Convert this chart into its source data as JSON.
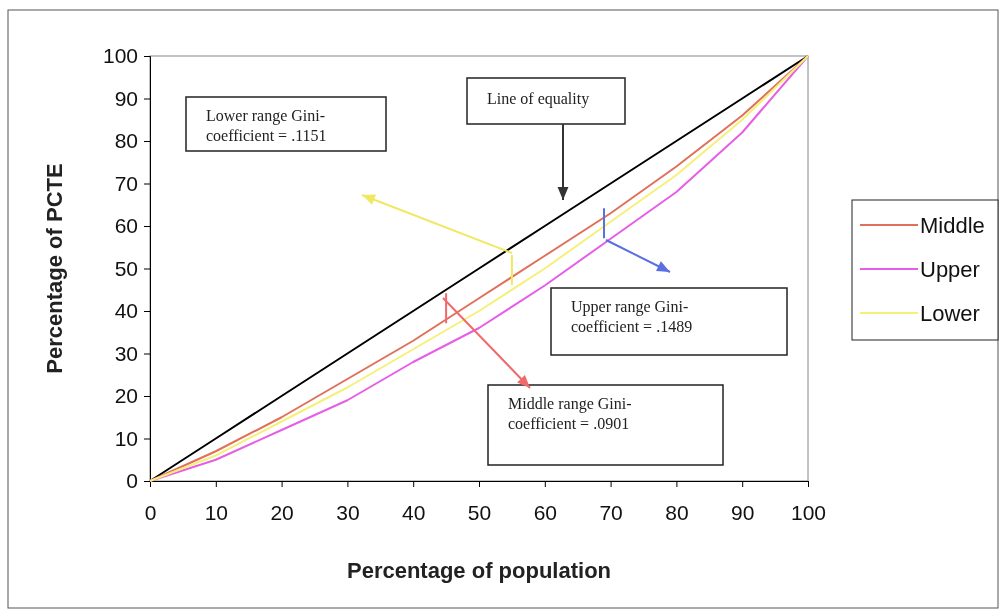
{
  "chart_data": {
    "type": "line",
    "xlabel": "Percentage of population",
    "ylabel": "Percentage of PCTE",
    "x": [
      0,
      10,
      20,
      30,
      40,
      50,
      60,
      70,
      80,
      90,
      100
    ],
    "xlim": [
      0,
      100
    ],
    "ylim": [
      0,
      100
    ],
    "xticks": [
      0,
      10,
      20,
      30,
      40,
      50,
      60,
      70,
      80,
      90,
      100
    ],
    "yticks": [
      0,
      10,
      20,
      30,
      40,
      50,
      60,
      70,
      80,
      90,
      100
    ],
    "series": [
      {
        "color": "#000000",
        "values": [
          0,
          10,
          20,
          30,
          40,
          50,
          60,
          70,
          80,
          90,
          100
        ]
      },
      {
        "name": "Middle",
        "color": "#e0705a",
        "values": [
          0,
          7,
          15,
          24,
          33,
          43,
          53,
          63,
          74,
          86,
          100
        ]
      },
      {
        "name": "Upper",
        "color": "#e65ee6",
        "values": [
          0,
          5,
          12,
          19,
          28,
          36,
          46,
          57,
          68,
          82,
          100
        ]
      },
      {
        "name": "Lower",
        "color": "#f5f07a",
        "values": [
          0,
          6,
          14,
          22,
          31,
          40,
          50,
          61,
          72,
          85,
          100
        ]
      }
    ],
    "legend": "right",
    "grid": false,
    "annotations": [
      "Line of equality",
      "Lower range Gini-coefficient = .1151",
      "Upper range Gini-coefficient = .1489",
      "Middle range Gini-coefficient = .0901"
    ]
  }
}
